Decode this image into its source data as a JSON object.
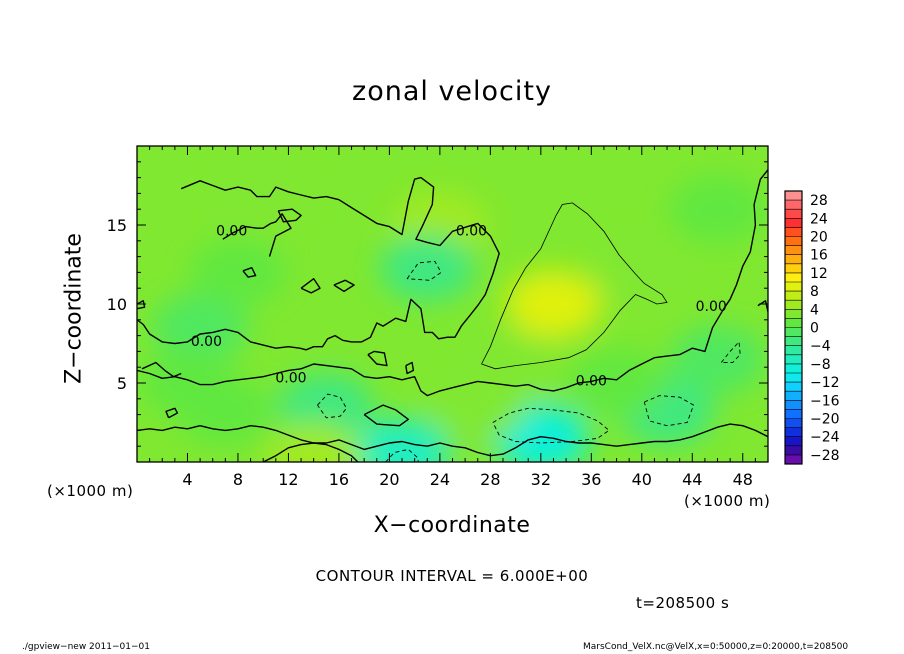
{
  "chart_data": {
    "type": "heatmap",
    "title": "zonal velocity",
    "xlabel": "X−coordinate",
    "ylabel": "Z−coordinate",
    "x_unit": "(×1000 m)",
    "y_unit": "(×1000 m)",
    "xlim": [
      0,
      50
    ],
    "ylim": [
      0,
      20
    ],
    "xticks": [
      4,
      8,
      12,
      16,
      20,
      24,
      28,
      32,
      36,
      40,
      44,
      48
    ],
    "yticks": [
      5,
      10,
      15
    ],
    "colorbar": {
      "ticks": [
        "28",
        "24",
        "20",
        "16",
        "12",
        "8",
        "4",
        "0",
        "−4",
        "−8",
        "−12",
        "−16",
        "−20",
        "−24",
        "−28"
      ],
      "levels": [
        -30,
        -28,
        -26,
        -24,
        -22,
        -20,
        -18,
        -16,
        -14,
        -12,
        -10,
        -8,
        -6,
        -4,
        -2,
        0,
        2,
        4,
        6,
        8,
        10,
        12,
        14,
        16,
        18,
        20,
        22,
        24,
        26,
        28,
        30
      ],
      "colors": [
        "#6a0dad",
        "#3a0ca3",
        "#1a14c8",
        "#1030e0",
        "#1050f0",
        "#1070ff",
        "#1090ff",
        "#10b0ff",
        "#10d0ff",
        "#10e8f0",
        "#10f0d8",
        "#20eec0",
        "#30eaa0",
        "#40e880",
        "#50e860",
        "#60e840",
        "#80e830",
        "#a0ea20",
        "#c0ec18",
        "#e0f010",
        "#ffef10",
        "#ffd010",
        "#ffb010",
        "#ff9010",
        "#ff7010",
        "#ff5020",
        "#ff3030",
        "#ff4848",
        "#ff6868",
        "#ff9090"
      ]
    },
    "field_features": [
      {
        "x": 33,
        "z": 10,
        "value": 9
      },
      {
        "x": 24,
        "z": 15,
        "value": 4
      },
      {
        "x": 10,
        "z": 17,
        "value": 2
      },
      {
        "x": 23,
        "z": 12.3,
        "value": -3
      },
      {
        "x": 32,
        "z": 1.5,
        "value": -9
      },
      {
        "x": 21,
        "z": 0.6,
        "value": -7
      },
      {
        "x": 15,
        "z": 3.5,
        "value": -3
      },
      {
        "x": 42,
        "z": 3.2,
        "value": -3
      },
      {
        "x": 7,
        "z": 3.2,
        "value": 1
      },
      {
        "x": 46,
        "z": 6.5,
        "value": -2
      },
      {
        "x": 5,
        "z": 8.5,
        "value": -1
      },
      {
        "x": 14,
        "z": 0.3,
        "value": 5
      },
      {
        "x": 30,
        "z": 6,
        "value": 3
      },
      {
        "x": 40,
        "z": 12,
        "value": 2
      },
      {
        "x": 8,
        "z": 12,
        "value": 1
      },
      {
        "x": 4,
        "z": 5,
        "value": 0
      },
      {
        "x": 46,
        "z": 16,
        "value": 1
      },
      {
        "x": 38,
        "z": 5,
        "value": 1
      },
      {
        "x": 27,
        "z": 3.5,
        "value": 2
      }
    ],
    "contour_labels": [
      {
        "x": 7.5,
        "z": 14.6,
        "text": "0.00"
      },
      {
        "x": 26.5,
        "z": 14.6,
        "text": "0.00"
      },
      {
        "x": 5.5,
        "z": 7.6,
        "text": "0.00"
      },
      {
        "x": 36,
        "z": 5.1,
        "text": "0.00"
      },
      {
        "x": 12.2,
        "z": 5.3,
        "text": "0.00"
      },
      {
        "x": 45.5,
        "z": 9.8,
        "text": "0.00"
      }
    ]
  },
  "contour_interval": "CONTOUR INTERVAL = 6.000E+00",
  "time_label": "t=208500 s",
  "footer_left": "./gpview−new  2011−01−01",
  "footer_right": "MarsCond_VelX.nc@VelX,x=0:50000,z=0:20000,t=208500"
}
